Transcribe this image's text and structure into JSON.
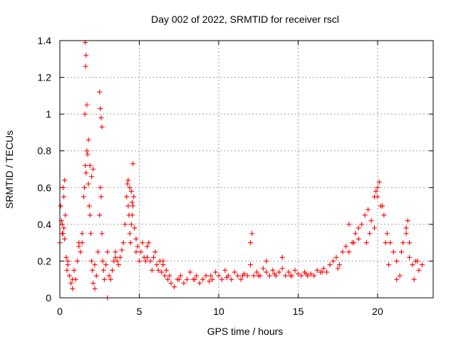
{
  "chart_data": {
    "type": "scatter",
    "title": "Day 002 of 2022, SRMTID for receiver rscl",
    "xlabel": "GPS time / hours",
    "ylabel": "SRMTID / TECUs",
    "xlim": [
      0,
      23.5
    ],
    "ylim": [
      0,
      1.4
    ],
    "xticks": [
      0,
      5,
      10,
      15,
      20
    ],
    "xtick_labels": [
      "0",
      "5",
      "10",
      "15",
      "20"
    ],
    "yticks": [
      0,
      0.2,
      0.4,
      0.6,
      0.8,
      1,
      1.2,
      1.4
    ],
    "ytick_labels": [
      "0",
      "0.2",
      "0.4",
      "0.6",
      "0.8",
      "1",
      "1.2",
      "1.4"
    ],
    "grid": true,
    "marker": "+",
    "color": "#ff0000",
    "series": [
      {
        "name": "SRMTID",
        "x": [
          0.0,
          0.05,
          0.1,
          0.15,
          0.2,
          0.25,
          0.3,
          0.35,
          0.4,
          0.45,
          0.5,
          0.6,
          0.7,
          0.8,
          0.9,
          1.0,
          1.1,
          1.2,
          1.3,
          1.4,
          1.5,
          1.55,
          1.6,
          1.65,
          1.7,
          1.75,
          1.8,
          1.85,
          1.9,
          1.95,
          2.0,
          2.05,
          2.1,
          2.2,
          2.3,
          2.4,
          2.5,
          2.55,
          2.6,
          2.65,
          2.7,
          2.75,
          2.8,
          2.9,
          3.0,
          3.1,
          3.2,
          3.3,
          3.4,
          3.5,
          3.6,
          3.7,
          3.8,
          3.9,
          4.0,
          4.1,
          4.2,
          4.25,
          4.3,
          4.35,
          4.4,
          4.45,
          4.5,
          4.55,
          4.6,
          4.65,
          4.7,
          4.8,
          4.9,
          5.0,
          5.1,
          5.2,
          5.3,
          5.4,
          5.5,
          5.6,
          5.7,
          5.8,
          5.9,
          6.0,
          6.1,
          6.2,
          6.3,
          6.4,
          6.5,
          6.6,
          6.7,
          6.8,
          6.9,
          7.0,
          7.2,
          7.4,
          7.6,
          7.8,
          8.0,
          8.2,
          8.4,
          8.6,
          8.8,
          9.0,
          9.2,
          9.4,
          9.6,
          9.8,
          10.0,
          10.2,
          10.4,
          10.6,
          10.8,
          11.0,
          11.2,
          11.4,
          11.6,
          11.8,
          12.0,
          12.2,
          12.4,
          12.6,
          12.8,
          13.0,
          13.2,
          13.4,
          13.6,
          13.8,
          14.0,
          14.2,
          14.4,
          14.6,
          14.8,
          15.0,
          15.2,
          15.4,
          15.6,
          15.8,
          16.0,
          16.2,
          16.4,
          16.6,
          16.8,
          17.0,
          17.2,
          17.4,
          17.6,
          17.8,
          18.0,
          18.2,
          18.4,
          18.6,
          18.8,
          19.0,
          19.2,
          19.4,
          19.6,
          19.8,
          20.0,
          20.2,
          20.4,
          20.6,
          20.8,
          21.0,
          21.2,
          21.4,
          21.6,
          21.8,
          22.0,
          22.2,
          22.4,
          22.6,
          22.8,
          1.6,
          1.65,
          1.62,
          1.58,
          1.7,
          2.5,
          2.6,
          2.55,
          2.65,
          4.6,
          0.2,
          0.25,
          0.3,
          0.15,
          1.8,
          1.9,
          2.0,
          2.1,
          4.3,
          4.4,
          4.5,
          4.55,
          19.8,
          20.0,
          20.1,
          19.9,
          20.3,
          21.8,
          21.9,
          22.0,
          3.0,
          0.5,
          0.8,
          1.2,
          1.4,
          2.2,
          3.5,
          4.8,
          5.5,
          6.5,
          7.5,
          8.5,
          9.5,
          10.5,
          11.5,
          12.5,
          13.5,
          14.5,
          15.5,
          16.5,
          17.5,
          18.5,
          19.5,
          20.5,
          21.5,
          22.5,
          12.0,
          12.1,
          13.0,
          14.0,
          18.2,
          18.8,
          19.3,
          20.7,
          21.2,
          22.3
        ],
        "y": [
          0.3,
          0.5,
          0.42,
          0.35,
          0.6,
          0.55,
          0.64,
          0.45,
          0.22,
          0.15,
          0.18,
          0.12,
          0.08,
          0.05,
          0.15,
          0.1,
          0.2,
          0.3,
          0.25,
          0.35,
          0.55,
          0.6,
          0.72,
          0.68,
          0.8,
          0.78,
          0.62,
          0.5,
          0.45,
          0.35,
          0.2,
          0.15,
          0.08,
          0.05,
          0.12,
          0.25,
          0.45,
          0.6,
          0.55,
          0.35,
          0.2,
          0.15,
          0.1,
          0.18,
          0.25,
          0.12,
          0.1,
          0.15,
          0.2,
          0.25,
          0.2,
          0.18,
          0.22,
          0.26,
          0.3,
          0.4,
          0.55,
          0.62,
          0.5,
          0.45,
          0.35,
          0.3,
          0.4,
          0.45,
          0.5,
          0.55,
          0.38,
          0.32,
          0.28,
          0.2,
          0.25,
          0.3,
          0.22,
          0.2,
          0.28,
          0.3,
          0.2,
          0.15,
          0.22,
          0.25,
          0.18,
          0.15,
          0.2,
          0.14,
          0.18,
          0.12,
          0.15,
          0.1,
          0.12,
          0.08,
          0.06,
          0.1,
          0.12,
          0.08,
          0.1,
          0.14,
          0.1,
          0.12,
          0.08,
          0.1,
          0.12,
          0.09,
          0.1,
          0.14,
          0.12,
          0.1,
          0.15,
          0.12,
          0.1,
          0.14,
          0.12,
          0.1,
          0.13,
          0.12,
          0.18,
          0.12,
          0.14,
          0.12,
          0.16,
          0.14,
          0.12,
          0.15,
          0.12,
          0.14,
          0.16,
          0.12,
          0.14,
          0.12,
          0.15,
          0.13,
          0.12,
          0.14,
          0.12,
          0.13,
          0.12,
          0.15,
          0.14,
          0.16,
          0.14,
          0.18,
          0.2,
          0.22,
          0.18,
          0.25,
          0.28,
          0.25,
          0.3,
          0.35,
          0.32,
          0.4,
          0.45,
          0.48,
          0.42,
          0.38,
          0.55,
          0.5,
          0.45,
          0.35,
          0.3,
          0.25,
          0.2,
          0.12,
          0.3,
          0.35,
          0.22,
          0.18,
          0.2,
          0.15,
          0.18,
          1.39,
          1.32,
          1.26,
          1.0,
          1.05,
          1.12,
          0.98,
          1.03,
          0.93,
          0.73,
          0.35,
          0.38,
          0.32,
          0.4,
          0.86,
          0.72,
          0.66,
          0.7,
          0.64,
          0.6,
          0.58,
          0.52,
          0.55,
          0.6,
          0.63,
          0.58,
          0.5,
          0.38,
          0.42,
          0.3,
          0.0,
          0.2,
          0.1,
          0.28,
          0.3,
          0.18,
          0.22,
          0.25,
          0.22,
          0.2,
          0.1,
          0.1,
          0.12,
          0.11,
          0.12,
          0.12,
          0.13,
          0.12,
          0.13,
          0.14,
          0.16,
          0.3,
          0.35,
          0.3,
          0.25,
          0.2,
          0.3,
          0.35,
          0.2,
          0.22,
          0.4,
          0.38,
          0.3,
          0.18,
          0.1,
          0.1
        ]
      }
    ]
  }
}
